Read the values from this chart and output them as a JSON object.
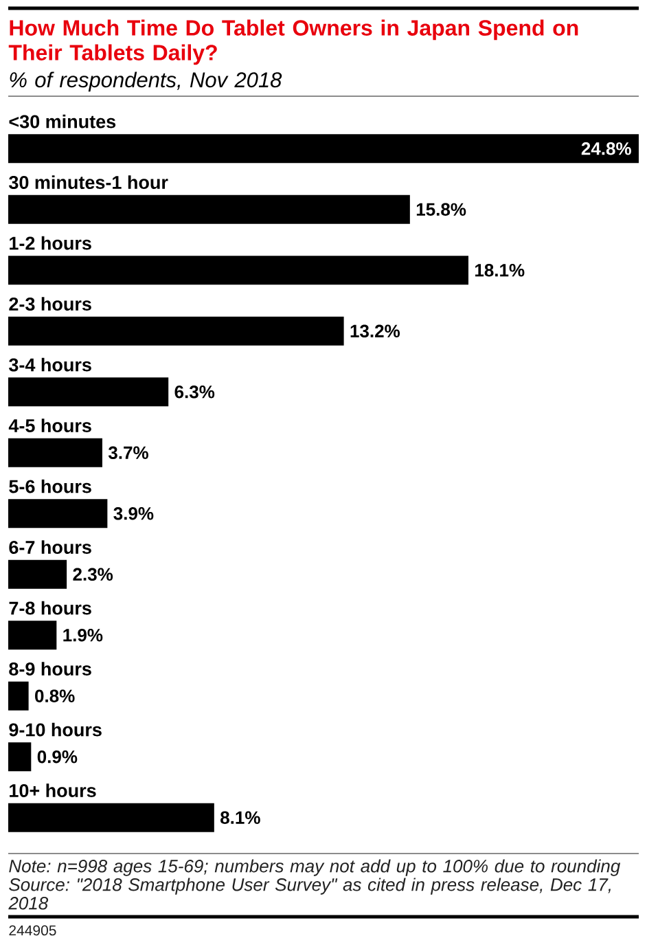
{
  "chart_data": {
    "type": "bar",
    "orientation": "horizontal",
    "title": "How Much Time Do Tablet Owners in Japan Spend on Their Tablets Daily?",
    "subtitle": "% of respondents, Nov 2018",
    "categories": [
      "<30 minutes",
      "30 minutes-1 hour",
      "1-2 hours",
      "2-3 hours",
      "3-4 hours",
      "4-5 hours",
      "5-6 hours",
      "6-7 hours",
      "7-8 hours",
      "8-9 hours",
      "9-10 hours",
      "10+ hours"
    ],
    "values": [
      24.8,
      15.8,
      18.1,
      13.2,
      6.3,
      3.7,
      3.9,
      2.3,
      1.9,
      0.8,
      0.9,
      8.1
    ],
    "value_labels": [
      "24.8%",
      "15.8%",
      "18.1%",
      "13.2%",
      "6.3%",
      "3.7%",
      "3.9%",
      "2.3%",
      "1.9%",
      "0.8%",
      "0.9%",
      "8.1%"
    ],
    "color": "#000000",
    "tick_labels": "y",
    "annotations": [
      "Note: n=998 ages 15-69; numbers may not add up to 100% due to rounding",
      "Source: \"2018 Smartphone User Survey\" as cited in press release, Dec 17, 2018",
      "244905"
    ]
  }
}
